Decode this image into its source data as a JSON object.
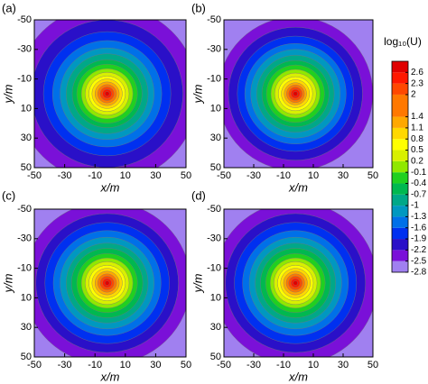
{
  "chart_data": {
    "type": "contour",
    "xlabel": "x/m",
    "ylabel": "y/m",
    "xlim": [
      -50,
      50
    ],
    "ylim": [
      50,
      -50
    ],
    "xticks": [
      -50,
      -30,
      -10,
      10,
      30,
      50
    ],
    "yticks": [
      -50,
      -30,
      -10,
      10,
      30,
      50
    ],
    "panels": [
      {
        "label": "(a)",
        "center": [
          -2,
          0
        ],
        "radii": [
          60,
          50,
          42,
          36,
          31,
          27,
          23,
          20,
          17,
          14.5,
          12,
          10,
          8,
          6.2,
          4.6,
          3,
          1.5
        ]
      },
      {
        "label": "(b)",
        "center": [
          -2,
          0
        ],
        "radii": [
          52,
          45,
          39,
          34,
          30,
          26,
          22.5,
          19.5,
          16.5,
          14,
          11.5,
          9.5,
          7.5,
          6,
          4.5,
          3,
          1.5
        ]
      },
      {
        "label": "(c)",
        "center": [
          -2,
          0
        ],
        "radii": [
          55,
          47,
          41,
          35.5,
          31,
          27,
          23.5,
          20,
          17,
          14.5,
          12,
          10,
          8,
          6.2,
          4.6,
          3,
          1.5
        ]
      },
      {
        "label": "(d)",
        "center": [
          -2,
          0
        ],
        "radii": [
          55,
          47,
          41,
          35.5,
          31,
          27,
          23.5,
          20,
          17,
          14.5,
          12,
          10,
          8,
          6.2,
          4.6,
          3,
          1.5
        ]
      }
    ],
    "colorbar": {
      "title": "log₁₀(U)",
      "lim": [
        -2.8,
        2.9
      ],
      "ticks": [
        -2.8,
        -2.5,
        -2.2,
        -1.9,
        -1.6,
        -1.3,
        -1,
        -0.7,
        -0.4,
        -0.1,
        0.2,
        0.5,
        0.8,
        1.1,
        1.4,
        2,
        2.3,
        2.6
      ],
      "colors": [
        "#a080f0",
        "#7a10d8",
        "#2a10c8",
        "#0030f0",
        "#0070e8",
        "#0098c0",
        "#00a888",
        "#00b850",
        "#20d020",
        "#90e800",
        "#d8f000",
        "#ffff00",
        "#ffd800",
        "#ffa800",
        "#ff7800",
        "#ff4800",
        "#ff1800",
        "#e00000"
      ]
    }
  }
}
